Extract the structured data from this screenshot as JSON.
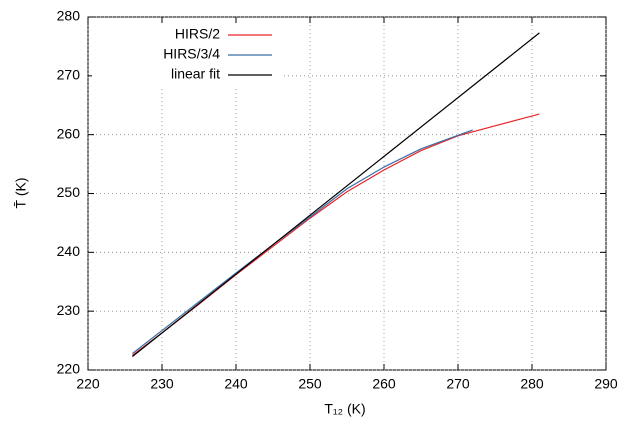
{
  "chart_data": {
    "type": "line",
    "xlabel": "T₁₂ (K)",
    "ylabel": "T̄ (K)",
    "xlim": [
      220,
      290
    ],
    "xticks": [
      220,
      230,
      240,
      250,
      260,
      270,
      280,
      290
    ],
    "ylim": [
      220,
      280
    ],
    "yticks": [
      220,
      230,
      240,
      250,
      260,
      270,
      280
    ],
    "grid": true,
    "legend": "top-left",
    "series": [
      {
        "name": "HIRS/2",
        "color": "#e8252a",
        "x": [
          226,
          230,
          235,
          240,
          245,
          250,
          255,
          260,
          265,
          270,
          275,
          281
        ],
        "values": [
          222.5,
          226.3,
          231.2,
          236.2,
          241.0,
          245.8,
          250.3,
          254.0,
          257.3,
          259.8,
          261.5,
          263.5
        ]
      },
      {
        "name": "HIRS/3/4",
        "color": "#3a6ea5",
        "x": [
          226,
          230,
          235,
          240,
          245,
          250,
          255,
          260,
          265,
          272
        ],
        "values": [
          222.8,
          226.7,
          231.6,
          236.5,
          241.3,
          246.0,
          250.8,
          254.5,
          257.6,
          260.8
        ]
      },
      {
        "name": "linear fit",
        "color": "#000000",
        "x": [
          226,
          281
        ],
        "values": [
          222.3,
          277.3
        ]
      }
    ]
  }
}
